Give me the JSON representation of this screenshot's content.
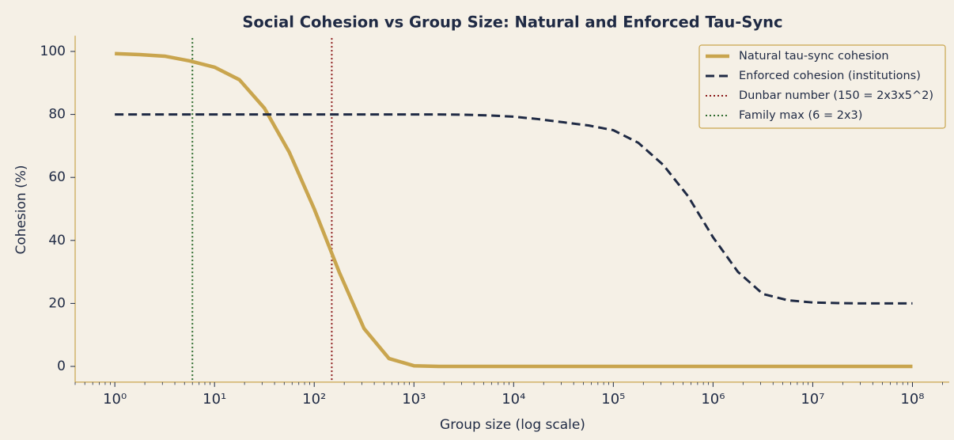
{
  "chart_data": {
    "type": "line",
    "title": "Social Cohesion vs Group Size: Natural and Enforced Tau-Sync",
    "x_label": "Group size (log scale)",
    "y_label": "Cohesion (%)",
    "x_scale": "log",
    "xlim": [
      0.4,
      234000000
    ],
    "ylim": [
      -5,
      105
    ],
    "xticks": [
      {
        "value": 1,
        "label": "10⁰"
      },
      {
        "value": 10,
        "label": "10¹"
      },
      {
        "value": 100,
        "label": "10²"
      },
      {
        "value": 1000,
        "label": "10³"
      },
      {
        "value": 10000,
        "label": "10⁴"
      },
      {
        "value": 100000,
        "label": "10⁵"
      },
      {
        "value": 1000000,
        "label": "10⁶"
      },
      {
        "value": 10000000,
        "label": "10⁷"
      },
      {
        "value": 100000000,
        "label": "10⁸"
      }
    ],
    "yticks": [
      0,
      20,
      40,
      60,
      80,
      100
    ],
    "legend": "upper right",
    "x": [
      1,
      1.778,
      3.162,
      5.623,
      10,
      17.78,
      31.62,
      56.23,
      100,
      177.8,
      316.2,
      562.3,
      1000,
      1778,
      3162,
      5623,
      10000,
      17783,
      31623,
      56234,
      100000,
      177828,
      316228,
      562341,
      1000000,
      1778279,
      3162278,
      5623413,
      10000000,
      17782794,
      31622777,
      56234133,
      100000000
    ],
    "series": [
      {
        "name": "Natural tau-sync cohesion",
        "color": "#c9a54e",
        "style": "solid",
        "values": [
          99.3,
          99,
          98.5,
          97,
          95,
          91,
          82,
          68,
          50,
          30,
          12,
          2.5,
          0.2,
          0,
          0,
          0,
          0,
          0,
          0,
          0,
          0,
          0,
          0,
          0,
          0,
          0,
          0,
          0,
          0,
          0,
          0,
          0,
          0
        ]
      },
      {
        "name": "Enforced cohesion (institutions)",
        "color": "#1f2a44",
        "style": "dashed",
        "values": [
          80,
          80,
          80,
          80,
          80,
          80,
          80,
          80,
          80,
          80,
          80,
          80,
          80,
          80,
          79.9,
          79.7,
          79.3,
          78.5,
          77.5,
          76.5,
          75,
          71,
          64,
          54,
          41,
          30,
          23,
          21,
          20.3,
          20.1,
          20,
          20,
          20
        ]
      }
    ],
    "reference_lines": [
      {
        "name": "Dunbar number (150 = 2x3x5^2)",
        "x": 150,
        "color": "#8b1a1a"
      },
      {
        "name": "Family max (6 = 2x3)",
        "x": 6,
        "color": "#2e6b2e"
      }
    ]
  }
}
